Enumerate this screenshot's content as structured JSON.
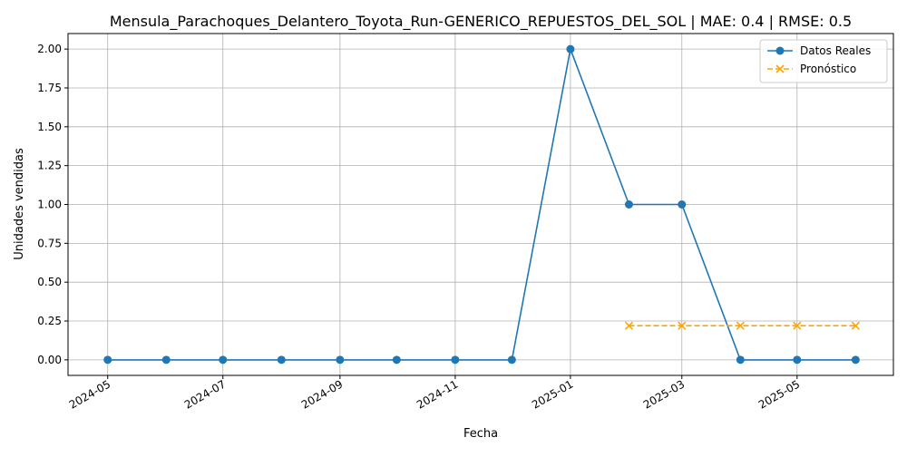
{
  "chart_data": {
    "type": "line",
    "title": "Mensula_Parachoques_Delantero_Toyota_Run-GENERICO_REPUESTOS_DEL_SOL | MAE: 0.4 | RMSE: 0.5",
    "xlabel": "Fecha",
    "ylabel": "Unidades vendidas",
    "ylim": [
      -0.1,
      2.1
    ],
    "xlim": [
      "2024-04-10",
      "2025-06-21"
    ],
    "grid": true,
    "legend_position": "top-right",
    "x_ticks": [
      "2024-05",
      "2024-07",
      "2024-09",
      "2024-11",
      "2025-01",
      "2025-03",
      "2025-05"
    ],
    "y_ticks": [
      "0.00",
      "0.25",
      "0.50",
      "0.75",
      "1.00",
      "1.25",
      "1.50",
      "1.75",
      "2.00"
    ],
    "series": [
      {
        "name": "Datos Reales",
        "color": "#1f77b4",
        "style": "solid",
        "marker": "circle",
        "x": [
          "2024-05-01",
          "2024-06-01",
          "2024-07-01",
          "2024-08-01",
          "2024-09-01",
          "2024-10-01",
          "2024-11-01",
          "2024-12-01",
          "2025-01-01",
          "2025-02-01",
          "2025-03-01",
          "2025-04-01",
          "2025-05-01",
          "2025-06-01"
        ],
        "values": [
          0,
          0,
          0,
          0,
          0,
          0,
          0,
          0,
          2,
          1,
          1,
          0,
          0,
          0
        ]
      },
      {
        "name": "Pronóstico",
        "color": "#ffa500",
        "style": "dashed",
        "marker": "x",
        "x": [
          "2025-02-01",
          "2025-03-01",
          "2025-04-01",
          "2025-05-01",
          "2025-06-01"
        ],
        "values": [
          0.22,
          0.22,
          0.22,
          0.22,
          0.22
        ]
      }
    ]
  }
}
